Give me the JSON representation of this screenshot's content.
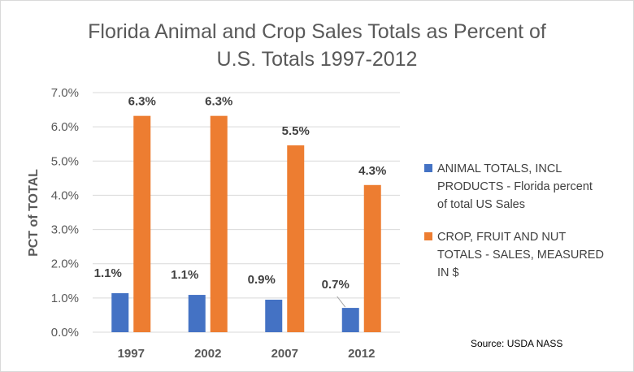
{
  "chart_data": {
    "type": "bar",
    "title_lines": [
      "Florida Animal and Crop Sales Totals as Percent of",
      "U.S. Totals 1997-2012"
    ],
    "ylabel": "PCT of TOTAL",
    "xlabel": "",
    "categories": [
      "1997",
      "2002",
      "2007",
      "2012"
    ],
    "ylim": [
      0,
      7
    ],
    "yticks": [
      "0.0%",
      "1.0%",
      "2.0%",
      "3.0%",
      "4.0%",
      "5.0%",
      "6.0%",
      "7.0%"
    ],
    "grid": true,
    "legend_position": "right",
    "series": [
      {
        "name": "ANIMAL TOTALS, INCL PRODUCTS - Florida percent of total US Sales",
        "legend_lines": [
          "ANIMAL TOTALS, INCL",
          "PRODUCTS - Florida percent",
          "of total US Sales"
        ],
        "color": "#4472c4",
        "values": [
          1.14,
          1.09,
          0.95,
          0.71
        ],
        "labels": [
          "1.1%",
          "1.1%",
          "0.9%",
          "0.7%"
        ]
      },
      {
        "name": "CROP, FRUIT AND NUT TOTALS - SALES, MEASURED IN $",
        "legend_lines": [
          "CROP, FRUIT AND NUT",
          "TOTALS - SALES, MEASURED",
          "IN $"
        ],
        "color": "#ed7d31",
        "values": [
          6.32,
          6.32,
          5.46,
          4.3
        ],
        "labels": [
          "6.3%",
          "6.3%",
          "5.5%",
          "4.3%"
        ]
      }
    ],
    "annotation": "Source: USDA NASS"
  }
}
